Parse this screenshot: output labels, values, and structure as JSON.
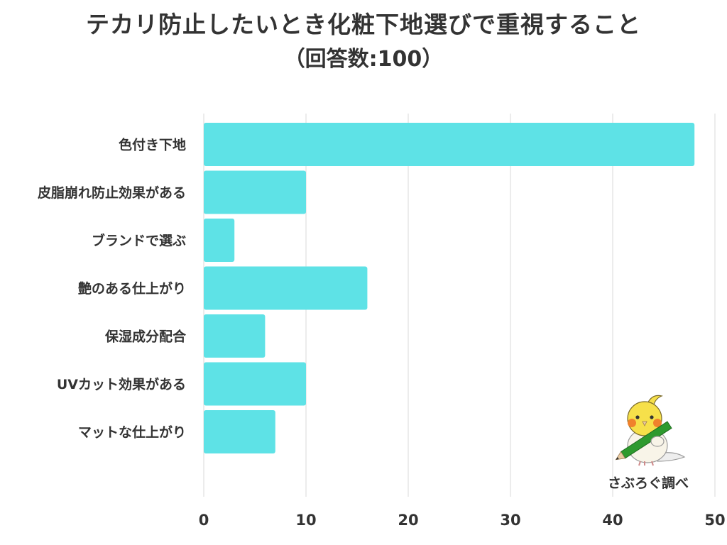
{
  "title": "テカリ防止したいとき化粧下地選びで重視すること",
  "subtitle": "（回答数:100）",
  "credit": "さぶろぐ調べ",
  "mascot": {
    "icon": "cockatiel-with-pencil-icon",
    "colors": {
      "body": "#f6e04a",
      "cheek": "#f0822c",
      "pencil": "#2e9a2e"
    }
  },
  "colors": {
    "bar": "#5ee2e6",
    "grid": "#d9d9d9",
    "text": "#333333"
  },
  "chart_data": {
    "type": "bar",
    "orientation": "horizontal",
    "categories": [
      "色付き下地",
      "皮脂崩れ防止効果がある",
      "ブランドで選ぶ",
      "艶のある仕上がり",
      "保湿成分配合",
      "UVカット効果がある",
      "マットな仕上がり"
    ],
    "values": [
      48,
      10,
      3,
      16,
      6,
      10,
      7
    ],
    "xlim": [
      0,
      50
    ],
    "xticks": [
      0,
      10,
      20,
      30,
      40,
      50
    ],
    "grid": true,
    "legend": "none"
  }
}
